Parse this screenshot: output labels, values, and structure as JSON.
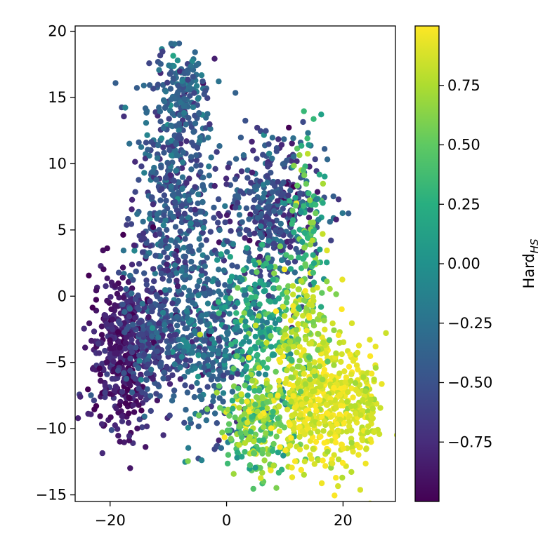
{
  "chart_data": {
    "type": "scatter",
    "title": "",
    "xlabel": "",
    "ylabel": "",
    "xlim": [
      -26,
      29
    ],
    "ylim": [
      -15.5,
      20.4
    ],
    "x_ticks": [
      -20,
      0,
      20
    ],
    "x_tick_labels": [
      "−20",
      "0",
      "20"
    ],
    "y_ticks": [
      -15,
      -10,
      -5,
      0,
      5,
      10,
      15,
      20
    ],
    "y_tick_labels": [
      "−15",
      "−10",
      "−5",
      "0",
      "5",
      "10",
      "15",
      "20"
    ],
    "grid": false,
    "colorbar": {
      "label_main": "Hard",
      "label_sub": "HS",
      "colormap": "viridis",
      "range": [
        -1.0,
        1.0
      ],
      "ticks": [
        -0.75,
        -0.5,
        -0.25,
        0.0,
        0.25,
        0.5,
        0.75
      ],
      "tick_labels": [
        "−0.75",
        "−0.50",
        "−0.25",
        "0.00",
        "0.25",
        "0.50",
        "0.75"
      ]
    },
    "clusters": [
      {
        "name": "upper-left lobe",
        "cx": -9,
        "cy": 8,
        "sx": 3.5,
        "sy": 5.5,
        "value": -0.45,
        "spread": 0.18,
        "n": 520
      },
      {
        "name": "upper-left tip",
        "cx": -7,
        "cy": 15.5,
        "sx": 1.8,
        "sy": 1.6,
        "value": -0.35,
        "spread": 0.15,
        "n": 90
      },
      {
        "name": "upper-right lobe",
        "cx": 8,
        "cy": 6.5,
        "sx": 4.5,
        "sy": 3.0,
        "value": -0.5,
        "spread": 0.2,
        "n": 420
      },
      {
        "name": "upper-right edge",
        "cx": 14,
        "cy": 5,
        "sx": 1.5,
        "sy": 3.5,
        "value": 0.35,
        "spread": 0.25,
        "n": 110
      },
      {
        "name": "left mass",
        "cx": -18,
        "cy": -4,
        "sx": 2.8,
        "sy": 3.0,
        "value": -0.85,
        "spread": 0.12,
        "n": 420
      },
      {
        "name": "left center",
        "cx": -12,
        "cy": -3,
        "sx": 3.0,
        "sy": 3.0,
        "value": -0.55,
        "spread": 0.15,
        "n": 280
      },
      {
        "name": "center",
        "cx": -3,
        "cy": -3.5,
        "sx": 3.5,
        "sy": 3.0,
        "value": -0.35,
        "spread": 0.2,
        "n": 360
      },
      {
        "name": "center-right",
        "cx": 6,
        "cy": -2,
        "sx": 3.0,
        "sy": 3.0,
        "value": 0.15,
        "spread": 0.25,
        "n": 220
      },
      {
        "name": "lower-center",
        "cx": 6,
        "cy": -9.5,
        "sx": 3.5,
        "sy": 2.0,
        "value": 0.55,
        "spread": 0.2,
        "n": 260
      },
      {
        "name": "lower-right",
        "cx": 17,
        "cy": -8,
        "sx": 4.0,
        "sy": 2.8,
        "value": 0.92,
        "spread": 0.08,
        "n": 430
      },
      {
        "name": "right tail",
        "cx": 24,
        "cy": -9,
        "sx": 1.2,
        "sy": 1.3,
        "value": 0.85,
        "spread": 0.08,
        "n": 60
      },
      {
        "name": "mid-right",
        "cx": 13,
        "cy": -3,
        "sx": 2.5,
        "sy": 2.5,
        "value": 0.75,
        "spread": 0.15,
        "n": 160
      }
    ]
  }
}
